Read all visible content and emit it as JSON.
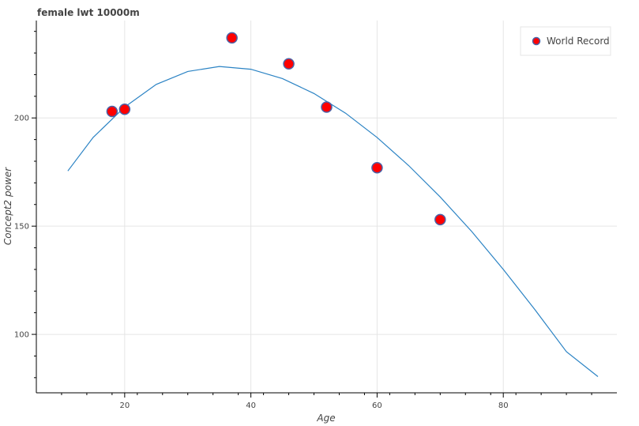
{
  "chart_data": {
    "type": "scatter",
    "title": "female lwt 10000m",
    "xlabel": "Age",
    "ylabel": "Concept2 power",
    "xlim": [
      6,
      98
    ],
    "ylim": [
      73,
      245
    ],
    "x_ticks": [
      20,
      40,
      60,
      80
    ],
    "y_ticks": [
      100,
      150,
      200
    ],
    "x_tick_labels": [
      "20",
      "40",
      "60",
      "80"
    ],
    "y_tick_labels": [
      "100",
      "150",
      "200"
    ],
    "grid": true,
    "legend": {
      "position": "top-right",
      "entries": [
        "World Record"
      ]
    },
    "series": [
      {
        "name": "World Record",
        "kind": "scatter",
        "color": "#ff0000",
        "edge_color": "#4a63a8",
        "points": [
          {
            "x": 18,
            "y": 203
          },
          {
            "x": 20,
            "y": 204
          },
          {
            "x": 37,
            "y": 237
          },
          {
            "x": 46,
            "y": 225
          },
          {
            "x": 52,
            "y": 205
          },
          {
            "x": 60,
            "y": 177
          },
          {
            "x": 70,
            "y": 153
          }
        ]
      },
      {
        "kind": "line",
        "color": "#2b83c4",
        "points": [
          {
            "x": 11,
            "y": 175.5
          },
          {
            "x": 15,
            "y": 191
          },
          {
            "x": 20,
            "y": 205
          },
          {
            "x": 25,
            "y": 215.5
          },
          {
            "x": 30,
            "y": 221.5
          },
          {
            "x": 35,
            "y": 223.8
          },
          {
            "x": 40,
            "y": 222.5
          },
          {
            "x": 45,
            "y": 218.2
          },
          {
            "x": 50,
            "y": 211.3
          },
          {
            "x": 55,
            "y": 202.2
          },
          {
            "x": 60,
            "y": 191
          },
          {
            "x": 65,
            "y": 178
          },
          {
            "x": 70,
            "y": 163.5
          },
          {
            "x": 75,
            "y": 147.5
          },
          {
            "x": 80,
            "y": 130
          },
          {
            "x": 85,
            "y": 111.5
          },
          {
            "x": 90,
            "y": 92
          },
          {
            "x": 95,
            "y": 80.5
          }
        ]
      }
    ]
  }
}
